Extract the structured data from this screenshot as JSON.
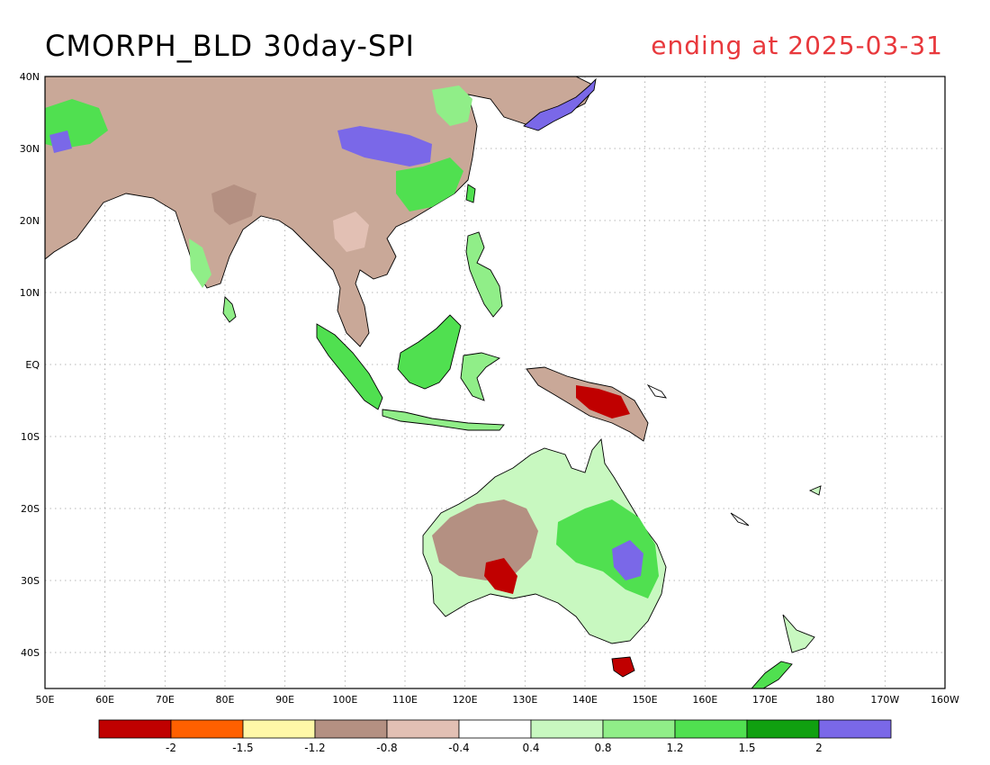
{
  "title": "CMORPH_BLD 30day-SPI",
  "date_label": "ending at 2025-03-31",
  "colors": {
    "date_text": "#e8383c",
    "coast": "#000000",
    "grid": "#a0a0a0"
  },
  "map": {
    "lon_range": [
      50,
      200
    ],
    "lat_range": [
      -45,
      40
    ],
    "lon_ticks": [
      "50E",
      "60E",
      "70E",
      "80E",
      "90E",
      "100E",
      "110E",
      "120E",
      "130E",
      "140E",
      "150E",
      "160E",
      "170E",
      "180",
      "170W",
      "160W"
    ],
    "lat_ticks": [
      "40N",
      "30N",
      "20N",
      "10N",
      "EQ",
      "10S",
      "20S",
      "30S",
      "40S"
    ]
  },
  "colorbar": {
    "colors": [
      "#c00000",
      "#ff6000",
      "#fff8a8",
      "#b49082",
      "#e2c0b4",
      "#ffffff",
      "#c8f8c0",
      "#90ee88",
      "#50e050",
      "#10a010",
      "#7a68e8"
    ],
    "labels": [
      "-2",
      "-1.5",
      "-1.2",
      "-0.8",
      "-0.4",
      "0.4",
      "0.8",
      "1.2",
      "1.5",
      "2"
    ]
  }
}
